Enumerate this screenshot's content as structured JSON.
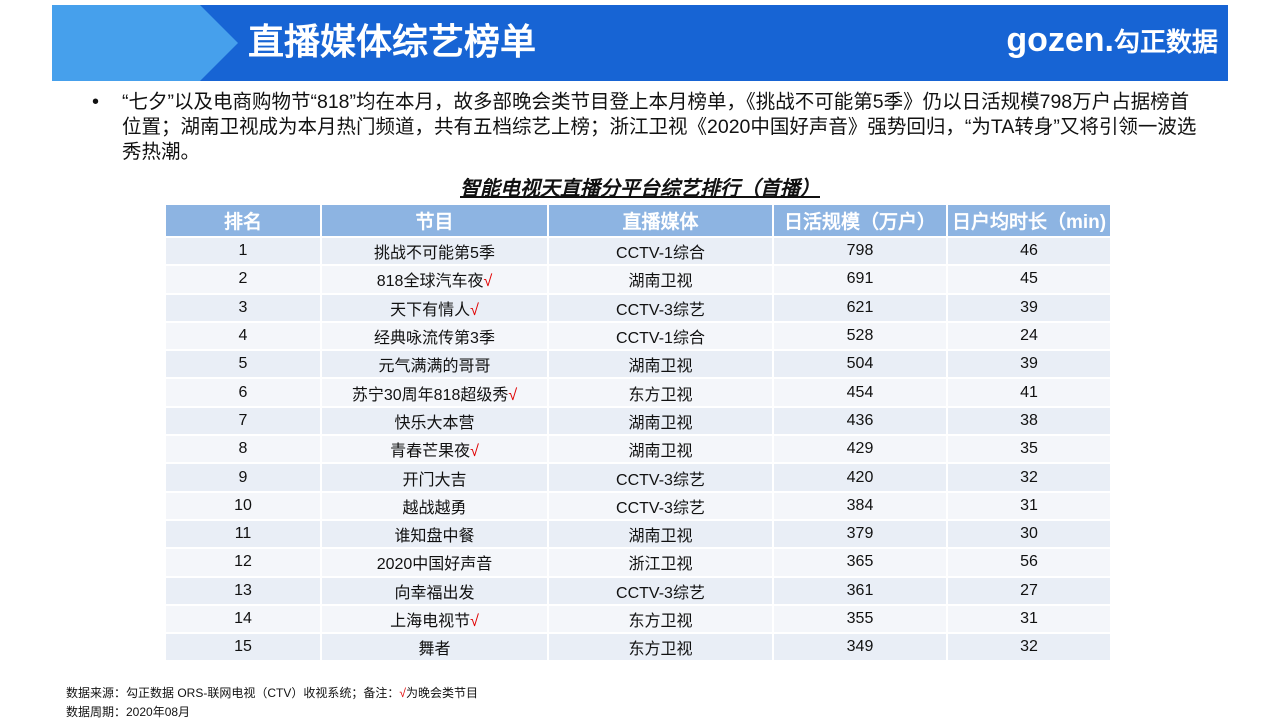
{
  "header": {
    "title": "直播媒体综艺榜单",
    "logo": "gozen.",
    "logo_cn": "勾正数据"
  },
  "summary": "“七夕”以及电商购物节“818”均在本月，故多部晚会类节目登上本月榜单，《挑战不可能第5季》仍以日活规模798万户占据榜首位置；湖南卫视成为本月热门频道，共有五档综艺上榜；浙江卫视《2020中国好声音》强势回归，“为TA转身”又将引领一波选秀热潮。",
  "table": {
    "title": "智能电视天直播分平台综艺排行（首播）",
    "columns": [
      "排名",
      "节目",
      "直播媒体",
      "日活规模（万户）",
      "日户均时长（min)"
    ],
    "mark_color": "#e00000",
    "rows": [
      {
        "rank": 1,
        "program": "挑战不可能第5季",
        "channel": "CCTV-1综合",
        "dau": 798,
        "minutes": 46
      },
      {
        "rank": 2,
        "program": "818全球汽车夜",
        "mark": "√",
        "channel": "湖南卫视",
        "dau": 691,
        "minutes": 45
      },
      {
        "rank": 3,
        "program": "天下有情人",
        "mark": "√",
        "channel": "CCTV-3综艺",
        "dau": 621,
        "minutes": 39
      },
      {
        "rank": 4,
        "program": "经典咏流传第3季",
        "channel": "CCTV-1综合",
        "dau": 528,
        "minutes": 24
      },
      {
        "rank": 5,
        "program": "元气满满的哥哥",
        "channel": "湖南卫视",
        "dau": 504,
        "minutes": 39
      },
      {
        "rank": 6,
        "program": "苏宁30周年818超级秀",
        "mark": "√",
        "channel": "东方卫视",
        "dau": 454,
        "minutes": 41
      },
      {
        "rank": 7,
        "program": "快乐大本营",
        "channel": "湖南卫视",
        "dau": 436,
        "minutes": 38
      },
      {
        "rank": 8,
        "program": "青春芒果夜",
        "mark": "√",
        "channel": "湖南卫视",
        "dau": 429,
        "minutes": 35
      },
      {
        "rank": 9,
        "program": "开门大吉",
        "channel": "CCTV-3综艺",
        "dau": 420,
        "minutes": 32
      },
      {
        "rank": 10,
        "program": "越战越勇",
        "channel": "CCTV-3综艺",
        "dau": 384,
        "minutes": 31
      },
      {
        "rank": 11,
        "program": "谁知盘中餐",
        "channel": "湖南卫视",
        "dau": 379,
        "minutes": 30
      },
      {
        "rank": 12,
        "program": "2020中国好声音",
        "channel": "浙江卫视",
        "dau": 365,
        "minutes": 56
      },
      {
        "rank": 13,
        "program": "向幸福出发",
        "channel": "CCTV-3综艺",
        "dau": 361,
        "minutes": 27
      },
      {
        "rank": 14,
        "program": "上海电视节",
        "mark": "√",
        "channel": "东方卫视",
        "dau": 355,
        "minutes": 31
      },
      {
        "rank": 15,
        "program": "舞者",
        "channel": "东方卫视",
        "dau": 349,
        "minutes": 32
      }
    ]
  },
  "footer": {
    "source": "数据来源：勾正数据 ORS-联网电视（CTV）收视系统；备注：",
    "source_mark": "√",
    "source_note": "为晚会类节目",
    "period": "数据周期：2020年08月"
  }
}
